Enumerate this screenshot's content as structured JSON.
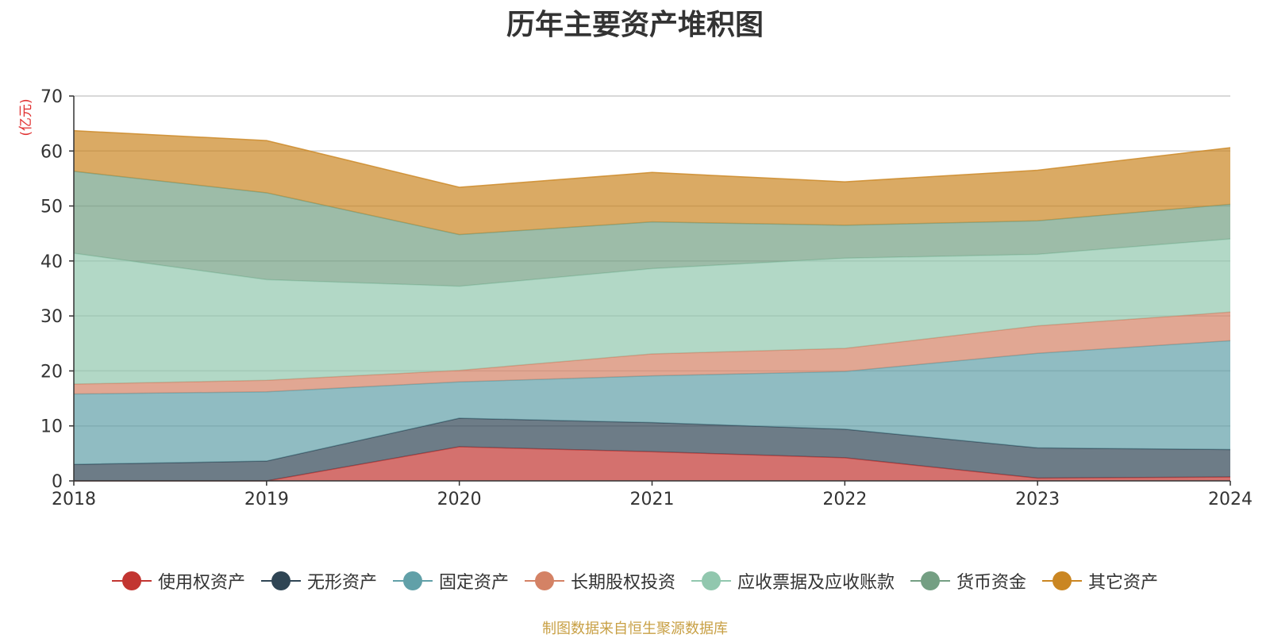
{
  "chart_data": {
    "type": "area",
    "stacked": true,
    "title": "历年主要资产堆积图",
    "unit_label": "(亿元)",
    "x": [
      "2018",
      "2019",
      "2020",
      "2021",
      "2022",
      "2023",
      "2024"
    ],
    "ylim": [
      0,
      70
    ],
    "yticks": [
      0,
      10,
      20,
      30,
      40,
      50,
      60,
      70
    ],
    "grid": true,
    "legend_position": "bottom",
    "series": [
      {
        "name": "使用权资产",
        "color": "#c23531",
        "values": [
          0,
          0,
          6.2,
          5.3,
          4.2,
          0.5,
          0.7
        ]
      },
      {
        "name": "无形资产",
        "color": "#2f4554",
        "values": [
          3.0,
          3.6,
          5.2,
          5.3,
          5.2,
          5.5,
          5.0
        ]
      },
      {
        "name": "固定资产",
        "color": "#61a0a8",
        "values": [
          12.8,
          12.6,
          6.6,
          8.5,
          10.5,
          17.2,
          19.8
        ]
      },
      {
        "name": "长期股权投资",
        "color": "#d48265",
        "values": [
          1.8,
          2.1,
          2.1,
          4.0,
          4.2,
          5.0,
          5.2
        ]
      },
      {
        "name": "应收票据及应收账款",
        "color": "#91c7ae",
        "values": [
          23.8,
          18.3,
          15.3,
          15.5,
          16.4,
          13.0,
          13.3
        ]
      },
      {
        "name": "货币资金",
        "color": "#749f83",
        "values": [
          14.9,
          15.8,
          9.4,
          8.5,
          6.0,
          6.1,
          6.3
        ]
      },
      {
        "name": "其它资产",
        "color": "#ca8622",
        "values": [
          7.4,
          9.5,
          8.6,
          9.0,
          7.9,
          9.2,
          10.3
        ]
      }
    ],
    "source": "制图数据来自恒生聚源数据库"
  }
}
